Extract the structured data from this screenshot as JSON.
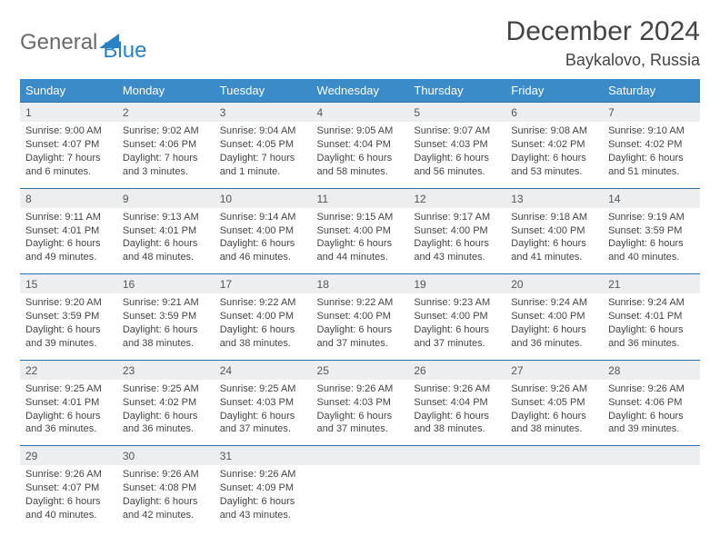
{
  "brand": {
    "part1": "General",
    "part2": "Blue"
  },
  "title": "December 2024",
  "location": "Baykalovo, Russia",
  "colors": {
    "header_bg": "#3b8bc9",
    "header_text": "#ffffff",
    "row_border": "#2f6fa6",
    "daynum_bg": "#eceef0",
    "body_text": "#444444",
    "brand_gray": "#6a6a6a",
    "brand_blue": "#2a82c4",
    "page_bg": "#ffffff"
  },
  "day_headers": [
    "Sunday",
    "Monday",
    "Tuesday",
    "Wednesday",
    "Thursday",
    "Friday",
    "Saturday"
  ],
  "weeks": [
    [
      {
        "n": "1",
        "sr": "9:00 AM",
        "ss": "4:07 PM",
        "dl": "7 hours and 6 minutes."
      },
      {
        "n": "2",
        "sr": "9:02 AM",
        "ss": "4:06 PM",
        "dl": "7 hours and 3 minutes."
      },
      {
        "n": "3",
        "sr": "9:04 AM",
        "ss": "4:05 PM",
        "dl": "7 hours and 1 minute."
      },
      {
        "n": "4",
        "sr": "9:05 AM",
        "ss": "4:04 PM",
        "dl": "6 hours and 58 minutes."
      },
      {
        "n": "5",
        "sr": "9:07 AM",
        "ss": "4:03 PM",
        "dl": "6 hours and 56 minutes."
      },
      {
        "n": "6",
        "sr": "9:08 AM",
        "ss": "4:02 PM",
        "dl": "6 hours and 53 minutes."
      },
      {
        "n": "7",
        "sr": "9:10 AM",
        "ss": "4:02 PM",
        "dl": "6 hours and 51 minutes."
      }
    ],
    [
      {
        "n": "8",
        "sr": "9:11 AM",
        "ss": "4:01 PM",
        "dl": "6 hours and 49 minutes."
      },
      {
        "n": "9",
        "sr": "9:13 AM",
        "ss": "4:01 PM",
        "dl": "6 hours and 48 minutes."
      },
      {
        "n": "10",
        "sr": "9:14 AM",
        "ss": "4:00 PM",
        "dl": "6 hours and 46 minutes."
      },
      {
        "n": "11",
        "sr": "9:15 AM",
        "ss": "4:00 PM",
        "dl": "6 hours and 44 minutes."
      },
      {
        "n": "12",
        "sr": "9:17 AM",
        "ss": "4:00 PM",
        "dl": "6 hours and 43 minutes."
      },
      {
        "n": "13",
        "sr": "9:18 AM",
        "ss": "4:00 PM",
        "dl": "6 hours and 41 minutes."
      },
      {
        "n": "14",
        "sr": "9:19 AM",
        "ss": "3:59 PM",
        "dl": "6 hours and 40 minutes."
      }
    ],
    [
      {
        "n": "15",
        "sr": "9:20 AM",
        "ss": "3:59 PM",
        "dl": "6 hours and 39 minutes."
      },
      {
        "n": "16",
        "sr": "9:21 AM",
        "ss": "3:59 PM",
        "dl": "6 hours and 38 minutes."
      },
      {
        "n": "17",
        "sr": "9:22 AM",
        "ss": "4:00 PM",
        "dl": "6 hours and 38 minutes."
      },
      {
        "n": "18",
        "sr": "9:22 AM",
        "ss": "4:00 PM",
        "dl": "6 hours and 37 minutes."
      },
      {
        "n": "19",
        "sr": "9:23 AM",
        "ss": "4:00 PM",
        "dl": "6 hours and 37 minutes."
      },
      {
        "n": "20",
        "sr": "9:24 AM",
        "ss": "4:00 PM",
        "dl": "6 hours and 36 minutes."
      },
      {
        "n": "21",
        "sr": "9:24 AM",
        "ss": "4:01 PM",
        "dl": "6 hours and 36 minutes."
      }
    ],
    [
      {
        "n": "22",
        "sr": "9:25 AM",
        "ss": "4:01 PM",
        "dl": "6 hours and 36 minutes."
      },
      {
        "n": "23",
        "sr": "9:25 AM",
        "ss": "4:02 PM",
        "dl": "6 hours and 36 minutes."
      },
      {
        "n": "24",
        "sr": "9:25 AM",
        "ss": "4:03 PM",
        "dl": "6 hours and 37 minutes."
      },
      {
        "n": "25",
        "sr": "9:26 AM",
        "ss": "4:03 PM",
        "dl": "6 hours and 37 minutes."
      },
      {
        "n": "26",
        "sr": "9:26 AM",
        "ss": "4:04 PM",
        "dl": "6 hours and 38 minutes."
      },
      {
        "n": "27",
        "sr": "9:26 AM",
        "ss": "4:05 PM",
        "dl": "6 hours and 38 minutes."
      },
      {
        "n": "28",
        "sr": "9:26 AM",
        "ss": "4:06 PM",
        "dl": "6 hours and 39 minutes."
      }
    ],
    [
      {
        "n": "29",
        "sr": "9:26 AM",
        "ss": "4:07 PM",
        "dl": "6 hours and 40 minutes."
      },
      {
        "n": "30",
        "sr": "9:26 AM",
        "ss": "4:08 PM",
        "dl": "6 hours and 42 minutes."
      },
      {
        "n": "31",
        "sr": "9:26 AM",
        "ss": "4:09 PM",
        "dl": "6 hours and 43 minutes."
      },
      null,
      null,
      null,
      null
    ]
  ],
  "labels": {
    "sunrise": "Sunrise: ",
    "sunset": "Sunset: ",
    "daylight": "Daylight: "
  }
}
